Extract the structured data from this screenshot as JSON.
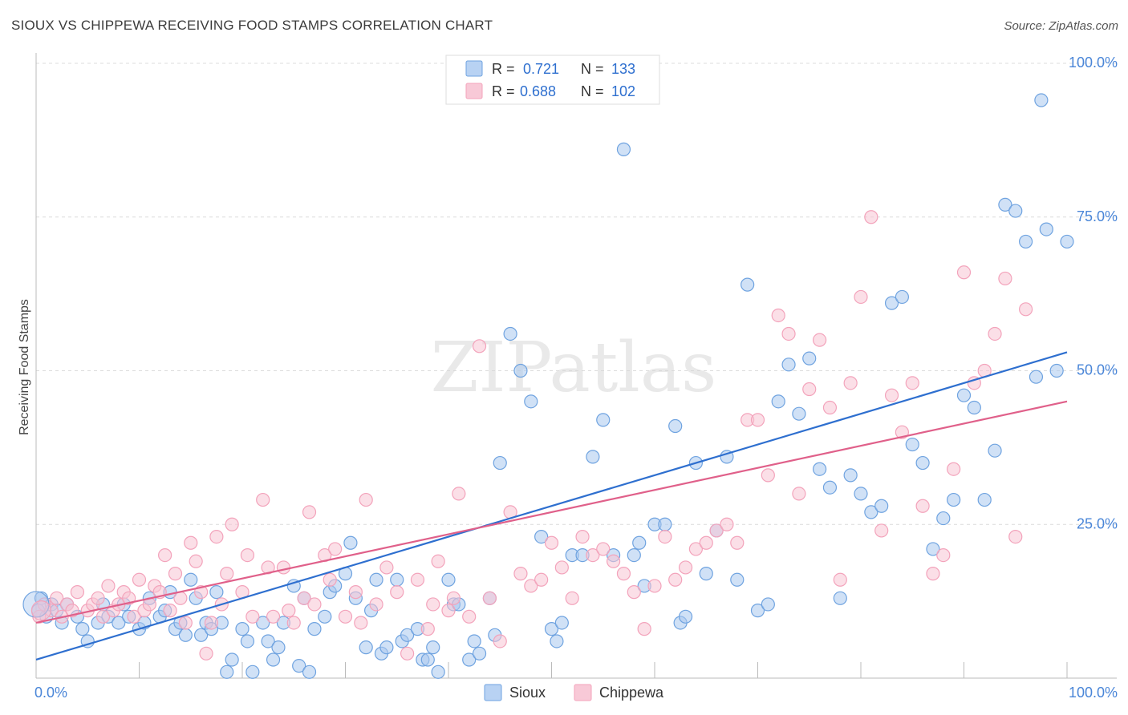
{
  "chart_data": {
    "type": "scatter",
    "title": "SIOUX VS CHIPPEWA RECEIVING FOOD STAMPS CORRELATION CHART",
    "source": "Source: ZipAtlas.com",
    "xlabel": "",
    "ylabel": "Receiving Food Stamps",
    "xlim": [
      0,
      100
    ],
    "ylim": [
      0,
      100
    ],
    "x_tick_labels": [
      "0.0%",
      "100.0%"
    ],
    "y_tick_labels": [
      "25.0%",
      "50.0%",
      "75.0%",
      "100.0%"
    ],
    "y_ticks": [
      25,
      50,
      75,
      100
    ],
    "grid": true,
    "watermark": "ZIPatlas",
    "legend": {
      "position": "top-center",
      "entries": [
        {
          "r_label": "R =",
          "r_value": "0.721",
          "n_label": "N =",
          "n_value": "133"
        },
        {
          "r_label": "R =",
          "r_value": "0.688",
          "n_label": "N =",
          "n_value": "102"
        }
      ]
    },
    "bottom_legend": [
      "Sioux",
      "Chippewa"
    ],
    "series": [
      {
        "name": "Sioux",
        "color": "#6fa3e0",
        "fill": "#a9c8ef",
        "line_color": "#2e6fcf",
        "trend": {
          "x": [
            0,
            100
          ],
          "y": [
            3,
            53
          ]
        },
        "points": [
          [
            0.2,
            11
          ],
          [
            0.5,
            13
          ],
          [
            1,
            10
          ],
          [
            1.5,
            12
          ],
          [
            2,
            11
          ],
          [
            2.5,
            9
          ],
          [
            3,
            12
          ],
          [
            4,
            10
          ],
          [
            4.5,
            8
          ],
          [
            5,
            6
          ],
          [
            6,
            9
          ],
          [
            6.5,
            12
          ],
          [
            7,
            10
          ],
          [
            8,
            9
          ],
          [
            8.5,
            12
          ],
          [
            9,
            10
          ],
          [
            10,
            8
          ],
          [
            10.5,
            9
          ],
          [
            11,
            13
          ],
          [
            12,
            10
          ],
          [
            12.5,
            11
          ],
          [
            13,
            14
          ],
          [
            13.5,
            8
          ],
          [
            14,
            9
          ],
          [
            14.5,
            7
          ],
          [
            15,
            16
          ],
          [
            15.5,
            13
          ],
          [
            16,
            7
          ],
          [
            16.5,
            9
          ],
          [
            17,
            8
          ],
          [
            17.5,
            14
          ],
          [
            18,
            9
          ],
          [
            18.5,
            1
          ],
          [
            19,
            3
          ],
          [
            20,
            8
          ],
          [
            20.5,
            6
          ],
          [
            21,
            1
          ],
          [
            22,
            9
          ],
          [
            22.5,
            6
          ],
          [
            23,
            3
          ],
          [
            23.5,
            5
          ],
          [
            24,
            9
          ],
          [
            25,
            15
          ],
          [
            25.5,
            2
          ],
          [
            26,
            13
          ],
          [
            26.5,
            1
          ],
          [
            27,
            8
          ],
          [
            28,
            10
          ],
          [
            28.5,
            14
          ],
          [
            29,
            15
          ],
          [
            30,
            17
          ],
          [
            30.5,
            22
          ],
          [
            31,
            13
          ],
          [
            32,
            5
          ],
          [
            32.5,
            11
          ],
          [
            33,
            16
          ],
          [
            33.5,
            4
          ],
          [
            34,
            5
          ],
          [
            35,
            16
          ],
          [
            35.5,
            6
          ],
          [
            36,
            7
          ],
          [
            37,
            8
          ],
          [
            37.5,
            3
          ],
          [
            38,
            3
          ],
          [
            38.5,
            5
          ],
          [
            39,
            1
          ],
          [
            40,
            16
          ],
          [
            40.5,
            12
          ],
          [
            41,
            12
          ],
          [
            42,
            3
          ],
          [
            42.5,
            6
          ],
          [
            43,
            4
          ],
          [
            44,
            13
          ],
          [
            44.5,
            7
          ],
          [
            45,
            35
          ],
          [
            46,
            56
          ],
          [
            47,
            50
          ],
          [
            48,
            45
          ],
          [
            49,
            23
          ],
          [
            50,
            8
          ],
          [
            50.5,
            6
          ],
          [
            51,
            9
          ],
          [
            52,
            20
          ],
          [
            53,
            20
          ],
          [
            54,
            36
          ],
          [
            55,
            42
          ],
          [
            56,
            20
          ],
          [
            57,
            86
          ],
          [
            58,
            20
          ],
          [
            58.5,
            22
          ],
          [
            59,
            15
          ],
          [
            60,
            25
          ],
          [
            61,
            25
          ],
          [
            62,
            41
          ],
          [
            62.5,
            9
          ],
          [
            63,
            10
          ],
          [
            64,
            35
          ],
          [
            65,
            17
          ],
          [
            66,
            24
          ],
          [
            67,
            36
          ],
          [
            68,
            16
          ],
          [
            69,
            64
          ],
          [
            70,
            11
          ],
          [
            71,
            12
          ],
          [
            72,
            45
          ],
          [
            73,
            51
          ],
          [
            74,
            43
          ],
          [
            75,
            52
          ],
          [
            76,
            34
          ],
          [
            77,
            31
          ],
          [
            78,
            13
          ],
          [
            79,
            33
          ],
          [
            80,
            30
          ],
          [
            81,
            27
          ],
          [
            82,
            28
          ],
          [
            83,
            61
          ],
          [
            84,
            62
          ],
          [
            85,
            38
          ],
          [
            86,
            35
          ],
          [
            87,
            21
          ],
          [
            88,
            26
          ],
          [
            89,
            29
          ],
          [
            90,
            46
          ],
          [
            91,
            44
          ],
          [
            92,
            29
          ],
          [
            93,
            37
          ],
          [
            94,
            77
          ],
          [
            95,
            76
          ],
          [
            96,
            71
          ],
          [
            97,
            49
          ],
          [
            98,
            73
          ],
          [
            99,
            50
          ],
          [
            97.5,
            94
          ],
          [
            100,
            71
          ]
        ]
      },
      {
        "name": "Chippewa",
        "color": "#f3a3bb",
        "fill": "#f8c5d4",
        "line_color": "#e0608a",
        "trend": {
          "x": [
            0,
            100
          ],
          "y": [
            9,
            45
          ]
        },
        "points": [
          [
            0.3,
            10
          ],
          [
            0.8,
            12
          ],
          [
            1.5,
            11
          ],
          [
            2,
            13
          ],
          [
            2.5,
            10
          ],
          [
            3,
            12
          ],
          [
            3.5,
            11
          ],
          [
            4,
            14
          ],
          [
            5,
            11
          ],
          [
            5.5,
            12
          ],
          [
            6,
            13
          ],
          [
            6.5,
            10
          ],
          [
            7,
            15
          ],
          [
            7.5,
            11
          ],
          [
            8,
            12
          ],
          [
            8.5,
            14
          ],
          [
            9,
            13
          ],
          [
            9.5,
            10
          ],
          [
            10,
            16
          ],
          [
            10.5,
            11
          ],
          [
            11,
            12
          ],
          [
            11.5,
            15
          ],
          [
            12,
            14
          ],
          [
            12.5,
            20
          ],
          [
            13,
            11
          ],
          [
            13.5,
            17
          ],
          [
            14,
            13
          ],
          [
            14.5,
            9
          ],
          [
            15,
            22
          ],
          [
            15.5,
            19
          ],
          [
            16,
            14
          ],
          [
            16.5,
            4
          ],
          [
            17,
            9
          ],
          [
            17.5,
            23
          ],
          [
            18,
            12
          ],
          [
            18.5,
            17
          ],
          [
            19,
            25
          ],
          [
            20,
            14
          ],
          [
            20.5,
            20
          ],
          [
            21,
            10
          ],
          [
            22,
            29
          ],
          [
            22.5,
            18
          ],
          [
            23,
            10
          ],
          [
            24,
            18
          ],
          [
            24.5,
            11
          ],
          [
            25,
            9
          ],
          [
            26,
            13
          ],
          [
            26.5,
            27
          ],
          [
            27,
            12
          ],
          [
            28,
            20
          ],
          [
            28.5,
            16
          ],
          [
            29,
            21
          ],
          [
            30,
            10
          ],
          [
            31,
            14
          ],
          [
            31.5,
            9
          ],
          [
            32,
            29
          ],
          [
            33,
            12
          ],
          [
            34,
            18
          ],
          [
            35,
            14
          ],
          [
            36,
            4
          ],
          [
            37,
            16
          ],
          [
            38,
            8
          ],
          [
            38.5,
            12
          ],
          [
            39,
            19
          ],
          [
            40,
            11
          ],
          [
            40.5,
            13
          ],
          [
            41,
            30
          ],
          [
            42,
            10
          ],
          [
            43,
            54
          ],
          [
            44,
            13
          ],
          [
            45,
            6
          ],
          [
            46,
            27
          ],
          [
            47,
            17
          ],
          [
            48,
            15
          ],
          [
            49,
            16
          ],
          [
            50,
            22
          ],
          [
            51,
            18
          ],
          [
            52,
            13
          ],
          [
            53,
            23
          ],
          [
            54,
            20
          ],
          [
            55,
            21
          ],
          [
            56,
            19
          ],
          [
            57,
            17
          ],
          [
            58,
            14
          ],
          [
            59,
            8
          ],
          [
            60,
            15
          ],
          [
            61,
            23
          ],
          [
            62,
            16
          ],
          [
            63,
            18
          ],
          [
            64,
            21
          ],
          [
            65,
            22
          ],
          [
            66,
            24
          ],
          [
            67,
            25
          ],
          [
            68,
            22
          ],
          [
            69,
            42
          ],
          [
            70,
            42
          ],
          [
            71,
            33
          ],
          [
            72,
            59
          ],
          [
            73,
            56
          ],
          [
            74,
            30
          ],
          [
            75,
            47
          ],
          [
            76,
            55
          ],
          [
            77,
            44
          ],
          [
            78,
            16
          ],
          [
            79,
            48
          ],
          [
            80,
            62
          ],
          [
            81,
            75
          ],
          [
            82,
            24
          ],
          [
            83,
            46
          ],
          [
            84,
            40
          ],
          [
            85,
            48
          ],
          [
            86,
            28
          ],
          [
            87,
            17
          ],
          [
            88,
            20
          ],
          [
            89,
            34
          ],
          [
            90,
            66
          ],
          [
            91,
            48
          ],
          [
            92,
            50
          ],
          [
            93,
            56
          ],
          [
            94,
            65
          ],
          [
            95,
            23
          ],
          [
            96,
            60
          ]
        ]
      }
    ]
  }
}
